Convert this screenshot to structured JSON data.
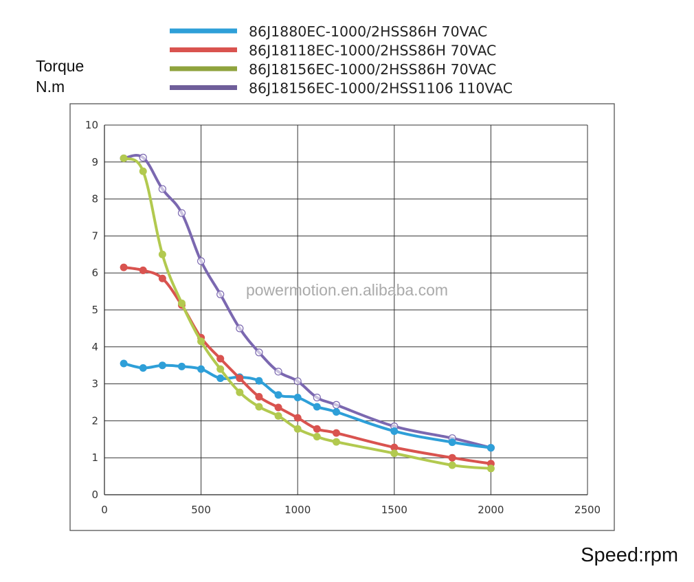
{
  "chart_data": {
    "type": "line",
    "title": "",
    "xlabel": "Speed:rpm",
    "ylabel_lines": [
      "Torque",
      "N.m"
    ],
    "xlim": [
      0,
      2500
    ],
    "ylim": [
      0,
      10
    ],
    "xticks": [
      0,
      500,
      1000,
      1500,
      2000,
      2500
    ],
    "yticks": [
      0,
      1,
      2,
      3,
      4,
      5,
      6,
      7,
      8,
      9,
      10
    ],
    "xtick_labels": [
      "0",
      "500",
      "1000",
      "1500",
      "2000",
      "2500"
    ],
    "ytick_labels": [
      "0",
      "1",
      "2",
      "3",
      "4",
      "5",
      "6",
      "7",
      "8",
      "9",
      "10"
    ],
    "grid": true,
    "legend_position": "top",
    "watermark": "powermotion.en.alibaba.com",
    "x": [
      100,
      200,
      300,
      400,
      500,
      600,
      700,
      800,
      900,
      1000,
      1100,
      1200,
      1500,
      1800,
      2000
    ],
    "series": [
      {
        "name": "86J1880EC-1000/2HSS86H   70VAC",
        "color": "#2e9fd8",
        "marker": "filled",
        "values": [
          3.55,
          3.43,
          3.5,
          3.47,
          3.4,
          3.15,
          3.18,
          3.08,
          2.7,
          2.63,
          2.38,
          2.24,
          1.72,
          1.42,
          1.27
        ]
      },
      {
        "name": "86J18118EC-1000/2HSS86H  70VAC",
        "color": "#d9534f",
        "marker": "filled",
        "values": [
          6.15,
          6.07,
          5.85,
          5.13,
          4.25,
          3.68,
          3.15,
          2.65,
          2.36,
          2.08,
          1.78,
          1.67,
          1.28,
          1.0,
          0.84
        ]
      },
      {
        "name": "86J18156EC-1000/2HSS86H  70VAC",
        "color": "#b2c94f",
        "legend_color": "#8fa33d",
        "marker": "filled",
        "values": [
          9.1,
          8.75,
          6.5,
          5.18,
          4.15,
          3.4,
          2.77,
          2.38,
          2.13,
          1.78,
          1.57,
          1.43,
          1.12,
          0.8,
          0.71
        ]
      },
      {
        "name": "86J18156EC-1000/2HSS1106  110VAC",
        "color": "#7b68b0",
        "legend_color": "#6f5e9a",
        "marker": "hollow",
        "values": [
          9.1,
          9.12,
          8.27,
          7.62,
          6.32,
          5.42,
          4.5,
          3.85,
          3.33,
          3.07,
          2.63,
          2.43,
          1.85,
          1.53,
          1.27
        ]
      }
    ]
  }
}
